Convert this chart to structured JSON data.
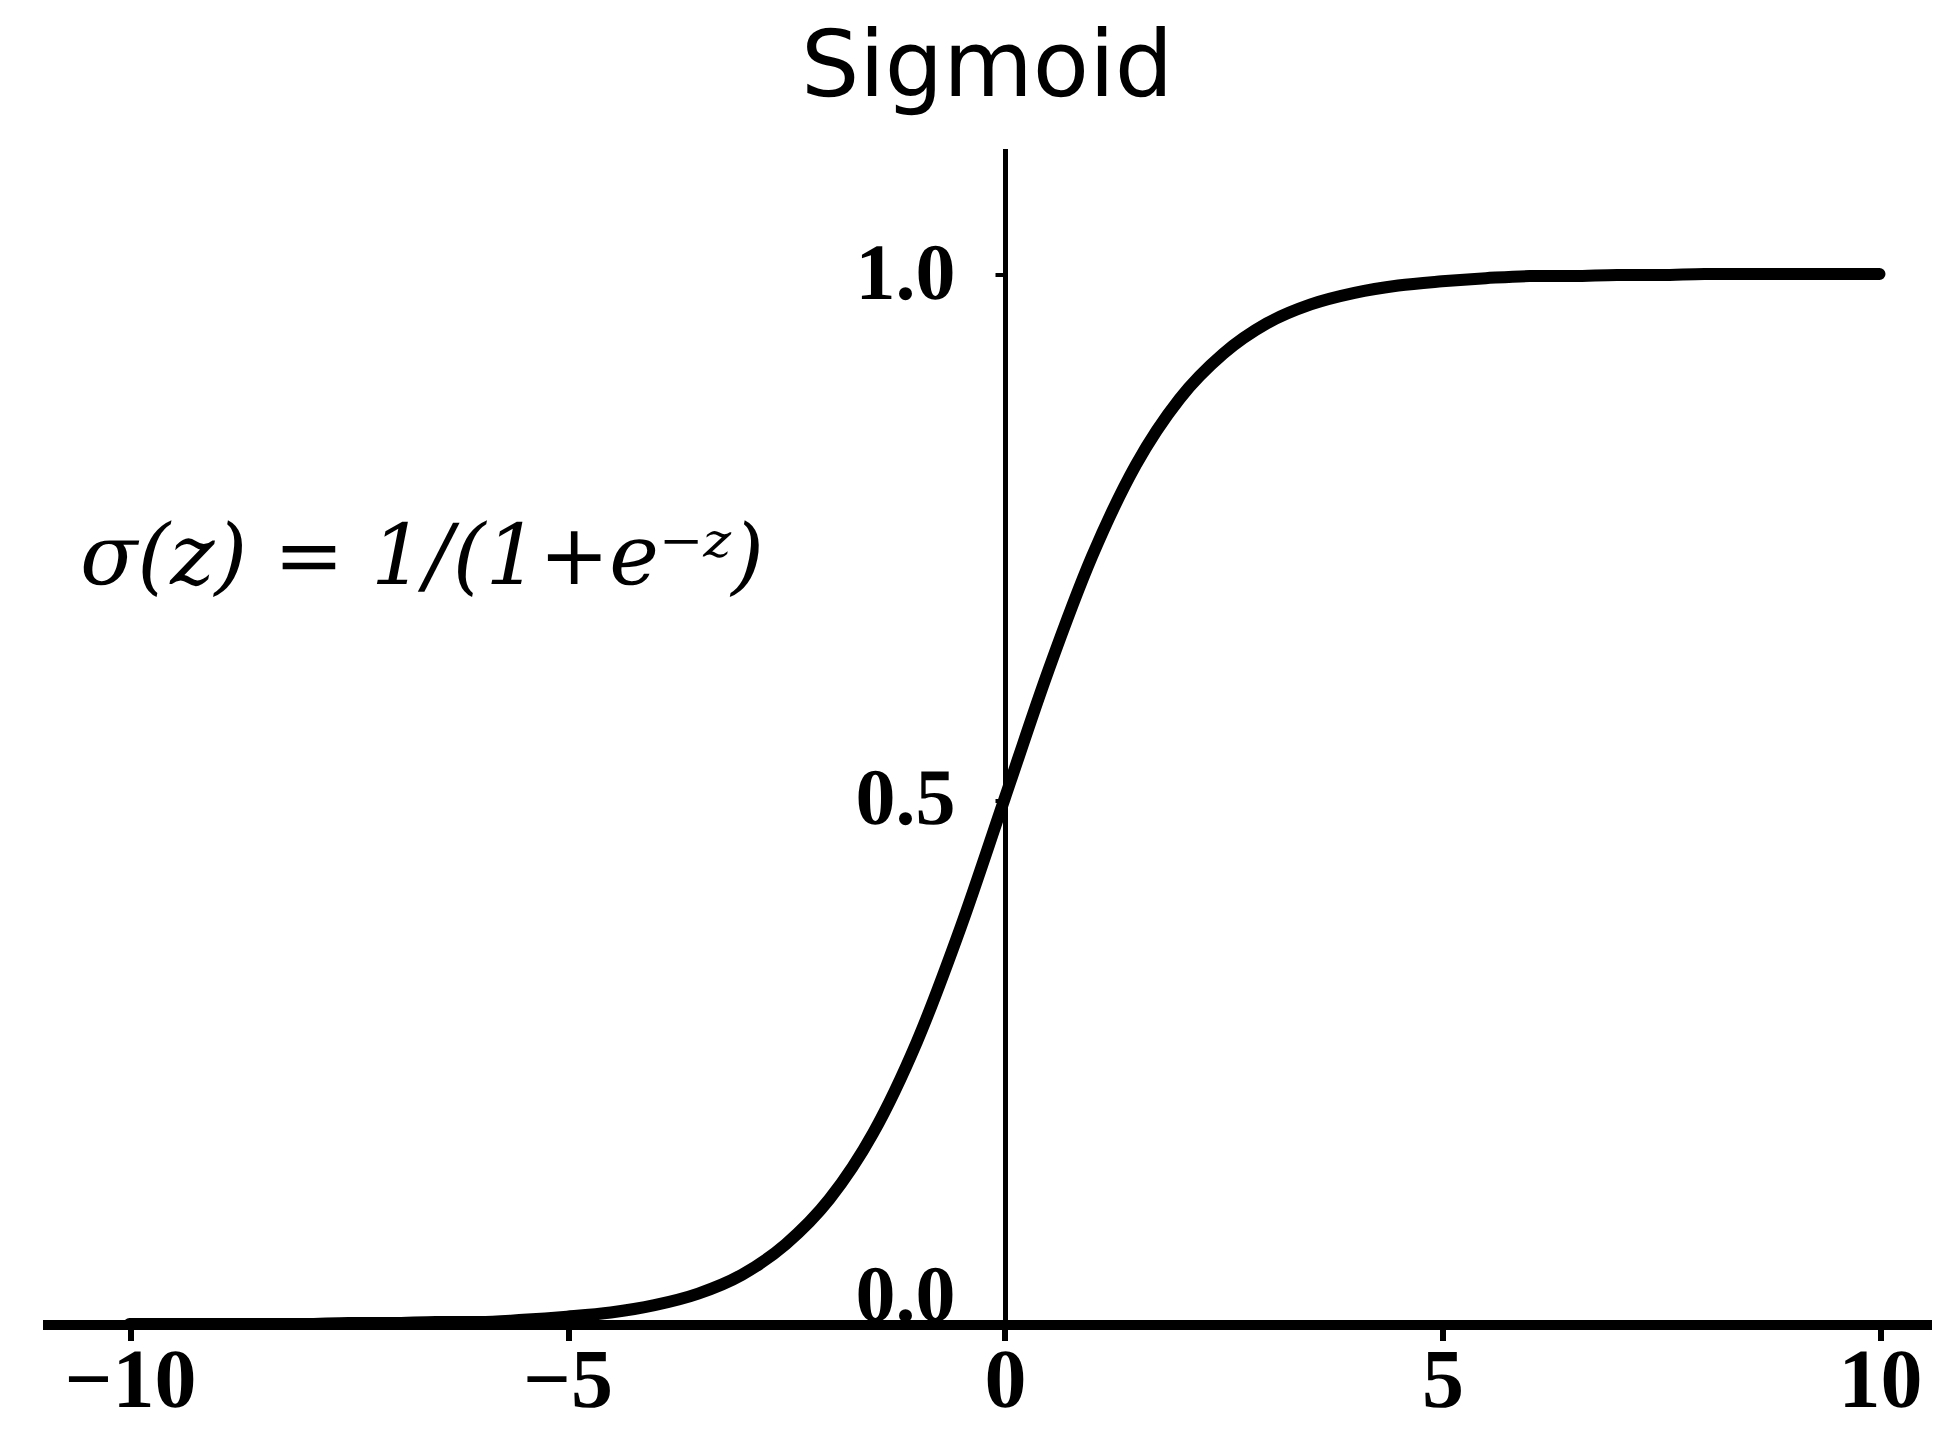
{
  "chart_data": {
    "type": "line",
    "title": "Sigmoid",
    "annotations": [
      "σ(z) = 1/(1+e⁻ᶻ)"
    ],
    "x": [
      -10,
      -9.5,
      -9,
      -8.5,
      -8,
      -7.5,
      -7,
      -6.5,
      -6,
      -5.5,
      -5,
      -4.5,
      -4,
      -3.5,
      -3,
      -2.5,
      -2,
      -1.5,
      -1,
      -0.5,
      0,
      0.5,
      1,
      1.5,
      2,
      2.5,
      3,
      3.5,
      4,
      4.5,
      5,
      5.5,
      6,
      6.5,
      7,
      7.5,
      8,
      8.5,
      9,
      9.5,
      10
    ],
    "series": [
      {
        "color": "#000000",
        "values": [
          0,
          0,
          0,
          0,
          0,
          0.001,
          0.001,
          0.002,
          0.002,
          0.004,
          0.007,
          0.011,
          0.018,
          0.029,
          0.047,
          0.076,
          0.119,
          0.182,
          0.269,
          0.378,
          0.5,
          0.622,
          0.731,
          0.818,
          0.881,
          0.924,
          0.953,
          0.971,
          0.982,
          0.989,
          0.993,
          0.996,
          0.998,
          0.998,
          0.999,
          0.999,
          1,
          1,
          1,
          1,
          1
        ]
      }
    ],
    "xlim": [
      -11,
      10.6
    ],
    "ylim": [
      0,
      1.12
    ],
    "xticks": [
      -10,
      -5,
      0,
      5,
      10
    ],
    "yticks": [
      {
        "value": 0,
        "label": "0.0"
      },
      {
        "value": 0.5,
        "label": "0.5"
      },
      {
        "value": 1,
        "label": "1.0"
      }
    ],
    "grid": false,
    "marker": "none",
    "line_style": "solid"
  }
}
